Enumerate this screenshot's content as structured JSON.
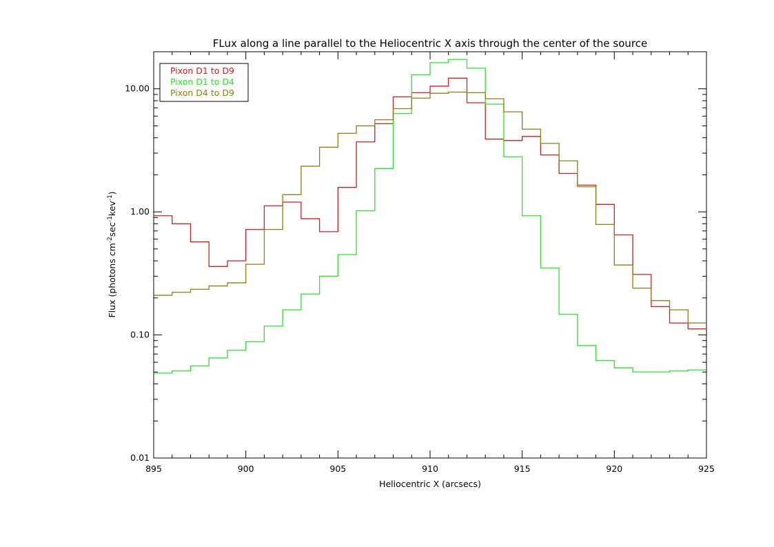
{
  "chart_data": {
    "type": "line",
    "step": true,
    "title": "FLux along a line parallel to the Heliocentric X axis through the center of the source",
    "xlabel": "Heliocentric X (arcsecs)",
    "ylabel": {
      "base": "Flux (photons cm",
      "sup1": "-2",
      "mid1": "sec",
      "sup2": "-1",
      "mid2": "kev",
      "sup3": "-1",
      "end": ")"
    },
    "xlim": [
      895,
      925
    ],
    "ylim": [
      0.01,
      20
    ],
    "yscale": "log",
    "grid": false,
    "legend_position": "top-left",
    "x_ticks": [
      {
        "value": 895,
        "label": "895"
      },
      {
        "value": 900,
        "label": "900"
      },
      {
        "value": 905,
        "label": "905"
      },
      {
        "value": 910,
        "label": "910"
      },
      {
        "value": 915,
        "label": "915"
      },
      {
        "value": 920,
        "label": "920"
      },
      {
        "value": 925,
        "label": "925"
      }
    ],
    "y_ticks": [
      {
        "value": 0.01,
        "label": "0.01"
      },
      {
        "value": 0.1,
        "label": "0.10"
      },
      {
        "value": 1,
        "label": "1.00"
      },
      {
        "value": 10,
        "label": "10.00"
      }
    ],
    "bin_edges": [
      895,
      896,
      897,
      898,
      899,
      900,
      901,
      902,
      903,
      904,
      905,
      906,
      907,
      908,
      909,
      910,
      911,
      912,
      913,
      914,
      915,
      916,
      917,
      918,
      919,
      920,
      921,
      922,
      923,
      924,
      925
    ],
    "series": [
      {
        "name": "Pixon D1 to D9",
        "color": "#cc1f1f",
        "values": [
          0.93,
          0.8,
          0.57,
          0.36,
          0.4,
          0.72,
          1.12,
          1.2,
          0.88,
          0.69,
          1.58,
          3.7,
          5.2,
          8.6,
          9.3,
          10.5,
          12.2,
          7.7,
          3.9,
          3.8,
          4.1,
          2.9,
          2.05,
          1.65,
          1.15,
          0.65,
          0.31,
          0.17,
          0.125,
          0.112
        ]
      },
      {
        "name": "Pixon D1 to D4",
        "color": "#2ee02e",
        "values": [
          0.049,
          0.051,
          0.056,
          0.065,
          0.075,
          0.088,
          0.118,
          0.16,
          0.215,
          0.3,
          0.45,
          1.02,
          2.25,
          6.3,
          13.0,
          16.3,
          17.3,
          14.7,
          7.5,
          2.8,
          0.93,
          0.35,
          0.147,
          0.082,
          0.062,
          0.054,
          0.05,
          0.05,
          0.051,
          0.052
        ]
      },
      {
        "name": "Pixon D4 to D9",
        "color": "#8b7e12",
        "values": [
          0.21,
          0.222,
          0.235,
          0.25,
          0.265,
          0.375,
          0.72,
          1.38,
          2.35,
          3.35,
          4.35,
          5.0,
          5.6,
          6.9,
          8.4,
          9.2,
          9.4,
          9.3,
          8.3,
          6.5,
          4.7,
          3.6,
          2.6,
          1.6,
          0.79,
          0.37,
          0.24,
          0.19,
          0.16,
          0.125
        ]
      }
    ]
  }
}
